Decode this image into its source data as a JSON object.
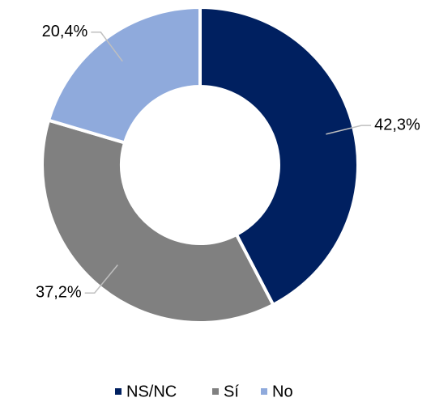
{
  "chart_data": {
    "type": "donut",
    "categories": [
      "NS/NC",
      "Sí",
      "No"
    ],
    "values": [
      42.3,
      37.2,
      20.4
    ],
    "value_labels": [
      "42,3%",
      "37,2%",
      "20,4%"
    ],
    "colors": [
      "#002060",
      "#808080",
      "#8faadc"
    ],
    "legend": "bottom"
  }
}
